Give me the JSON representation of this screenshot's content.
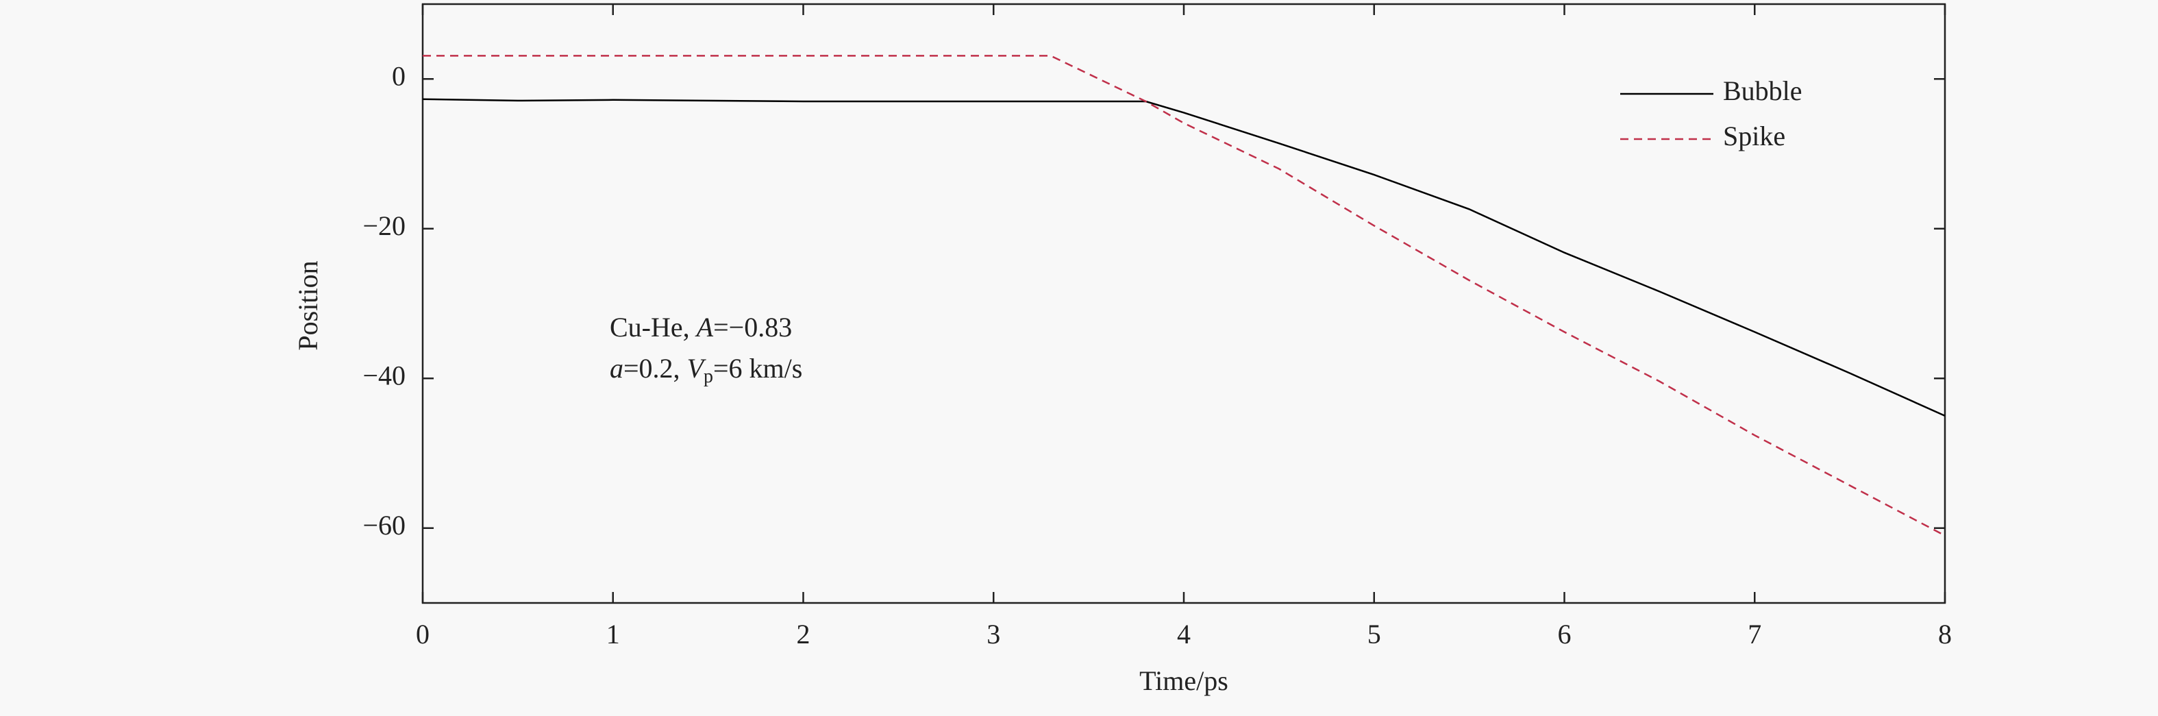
{
  "chart_data": {
    "type": "line",
    "xlabel": "Time/ps",
    "ylabel": "Position",
    "xlim": [
      0,
      8
    ],
    "ylim": [
      -70,
      10
    ],
    "xticks": [
      0,
      1,
      2,
      3,
      4,
      5,
      6,
      7,
      8
    ],
    "yticks": [
      {
        "value": -60,
        "label": "−60"
      },
      {
        "value": -40,
        "label": "−40"
      },
      {
        "value": -20,
        "label": "−20"
      },
      0
    ],
    "legend": "upper right",
    "series": [
      {
        "name": "Bubble",
        "color": "#000000",
        "linestyle": "solid",
        "x": [
          0,
          0.5,
          1,
          1.5,
          2,
          2.5,
          3,
          3.5,
          3.8,
          4,
          4.5,
          5,
          5.5,
          6,
          6.5,
          7,
          7.5,
          8
        ],
        "values": [
          -2.7,
          -2.9,
          -2.8,
          -2.9,
          -3.0,
          -3.0,
          -3.0,
          -3.0,
          -3.0,
          -4.5,
          -8.6,
          -12.8,
          -17.4,
          -23.2,
          -28.4,
          -33.8,
          -39.3,
          -45.0
        ]
      },
      {
        "name": "Spike",
        "color": "#c0304a",
        "linestyle": "dashed",
        "x": [
          0,
          3.3,
          3.8,
          4,
          4.5,
          5,
          5.5,
          6,
          6.5,
          7,
          7.5,
          8
        ],
        "values": [
          3.1,
          3.1,
          -3.0,
          -5.9,
          -12.0,
          -19.6,
          -26.9,
          -33.8,
          -40.4,
          -47.6,
          -54.3,
          -61.0
        ]
      }
    ],
    "annotations": [
      [
        {
          "text": "Cu-He, "
        },
        {
          "text": "A",
          "style": "italic"
        },
        {
          "text": "=−0.83"
        }
      ],
      [
        {
          "text": "a",
          "style": "italic"
        },
        {
          "text": "=0.2, "
        },
        {
          "text": "V",
          "style": "italic"
        },
        {
          "text": "p",
          "style": "sub"
        },
        {
          "text": "=6 km/s"
        }
      ]
    ]
  }
}
